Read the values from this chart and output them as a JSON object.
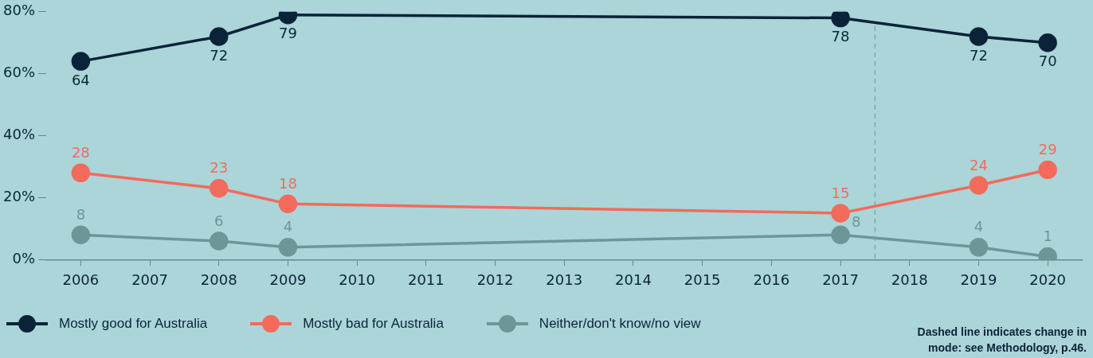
{
  "chart_data": {
    "type": "line",
    "x": [
      2006,
      2008,
      2009,
      2017,
      2019,
      2020
    ],
    "series": [
      {
        "name": "Mostly good for Australia",
        "color": "#0b2338",
        "values": [
          64,
          72,
          79,
          78,
          72,
          70
        ]
      },
      {
        "name": "Mostly bad for Australia",
        "color": "#f26b5b",
        "values": [
          28,
          23,
          18,
          15,
          24,
          29
        ]
      },
      {
        "name": "Neither/don't know/no view",
        "color": "#6e9598",
        "values": [
          8,
          6,
          4,
          8,
          4,
          1
        ]
      }
    ],
    "xlim": [
      2005.5,
      2020.5
    ],
    "xticks": [
      2006,
      2007,
      2008,
      2009,
      2010,
      2011,
      2012,
      2013,
      2014,
      2015,
      2016,
      2017,
      2018,
      2019,
      2020
    ],
    "ylim": [
      0,
      80
    ],
    "yticks": [
      {
        "value": 0,
        "label": "0%"
      },
      {
        "value": 20,
        "label": "20%"
      },
      {
        "value": 40,
        "label": "40%"
      },
      {
        "value": 60,
        "label": "60%"
      },
      {
        "value": 80,
        "label": "80%"
      }
    ],
    "grid": false,
    "legend": "bottom left",
    "marker": "circle",
    "line_style": "solid",
    "data_labels": true,
    "ref_lines": [
      {
        "axis": "x",
        "value": 2017.5,
        "color": "#7a9ea2",
        "line_style": "dashed"
      }
    ],
    "annotations": [
      "Dashed line indicates change in mode: see Methodology, p.46."
    ]
  }
}
